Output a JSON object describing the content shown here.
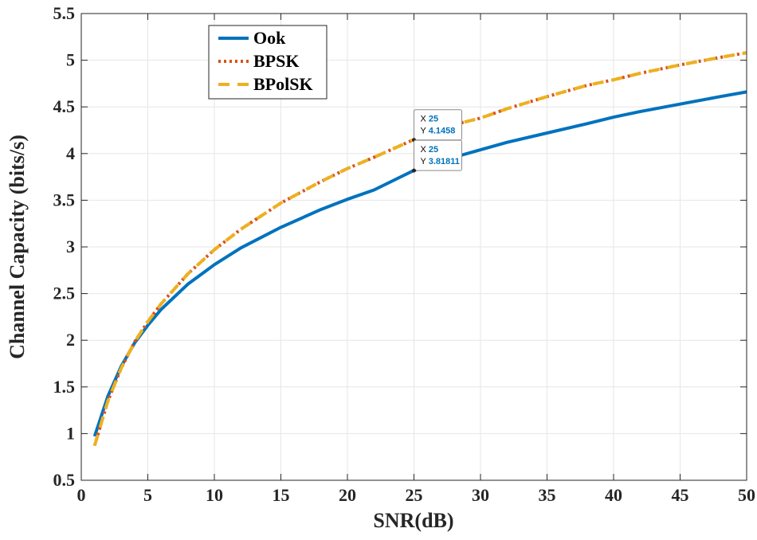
{
  "chart_data": {
    "type": "line",
    "title": "",
    "xlabel": "SNR(dB)",
    "ylabel": "Channel Capacity (bits/s)",
    "xlim": [
      0,
      50
    ],
    "ylim": [
      0.5,
      5.5
    ],
    "xticks": [
      0,
      5,
      10,
      15,
      20,
      25,
      30,
      35,
      40,
      45,
      50
    ],
    "yticks": [
      0.5,
      1,
      1.5,
      2,
      2.5,
      3,
      3.5,
      4,
      4.5,
      5,
      5.5
    ],
    "xtick_labels": [
      "0",
      "5",
      "10",
      "15",
      "20",
      "25",
      "30",
      "35",
      "40",
      "45",
      "50"
    ],
    "ytick_labels": [
      "0.5",
      "1",
      "1.5",
      "2",
      "2.5",
      "3",
      "3.5",
      "4",
      "4.5",
      "5",
      "5.5"
    ],
    "grid": true,
    "legend_position": "top-left",
    "series": [
      {
        "name": "Ook",
        "color": "#0072BD",
        "style": "solid",
        "x": [
          1,
          2,
          3,
          4,
          5,
          6,
          8,
          10,
          12,
          15,
          18,
          20,
          22,
          25,
          28,
          30,
          32,
          35,
          38,
          40,
          42,
          45,
          48,
          50
        ],
        "y": [
          0.97,
          1.4,
          1.72,
          1.97,
          2.16,
          2.33,
          2.6,
          2.81,
          2.99,
          3.21,
          3.4,
          3.51,
          3.61,
          3.82,
          3.96,
          4.04,
          4.12,
          4.22,
          4.32,
          4.39,
          4.45,
          4.53,
          4.61,
          4.66
        ]
      },
      {
        "name": "BPSK",
        "color": "#D95319",
        "style": "dotted",
        "x": [
          1,
          2,
          3,
          4,
          5,
          6,
          8,
          10,
          12,
          15,
          18,
          20,
          22,
          25,
          28,
          30,
          32,
          35,
          38,
          40,
          42,
          45,
          48,
          50
        ],
        "y": [
          0.87,
          1.35,
          1.7,
          1.98,
          2.2,
          2.39,
          2.71,
          2.97,
          3.19,
          3.47,
          3.7,
          3.84,
          3.96,
          4.15,
          4.31,
          4.38,
          4.48,
          4.61,
          4.73,
          4.79,
          4.86,
          4.95,
          5.03,
          5.08
        ]
      },
      {
        "name": "BPolSK",
        "color": "#EDB120",
        "style": "dashed",
        "x": [
          1,
          2,
          3,
          4,
          5,
          6,
          8,
          10,
          12,
          15,
          18,
          20,
          22,
          25,
          28,
          30,
          32,
          35,
          38,
          40,
          42,
          45,
          48,
          50
        ],
        "y": [
          0.87,
          1.35,
          1.7,
          1.98,
          2.2,
          2.39,
          2.71,
          2.97,
          3.19,
          3.47,
          3.7,
          3.84,
          3.96,
          4.15,
          4.31,
          4.38,
          4.48,
          4.61,
          4.73,
          4.79,
          4.86,
          4.95,
          5.03,
          5.08
        ]
      }
    ],
    "datatips": [
      {
        "x": 25,
        "y": 4.1458,
        "x_label": "X",
        "y_label": "Y",
        "x_text": "25",
        "y_text": "4.1458"
      },
      {
        "x": 25,
        "y": 3.81811,
        "x_label": "X",
        "y_label": "Y",
        "x_text": "25",
        "y_text": "3.81811"
      }
    ]
  }
}
